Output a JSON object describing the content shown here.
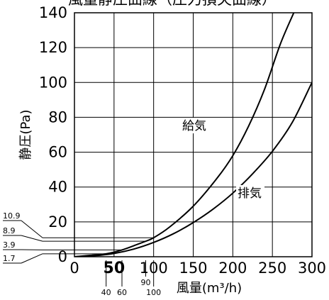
{
  "chart_data": {
    "type": "line",
    "title": "風量静圧曲線（圧力損失曲線）",
    "xlabel": "風量(m³/h)",
    "ylabel": "静圧(Pa)",
    "xlim": [
      0,
      300
    ],
    "ylim": [
      0,
      140
    ],
    "x_ticks": [
      "0",
      "50",
      "100",
      "150",
      "200",
      "250",
      "300"
    ],
    "y_ticks": [
      "0",
      "20",
      "40",
      "60",
      "80",
      "100",
      "120",
      "140"
    ],
    "extra_x_ticks": [
      {
        "value": 40,
        "label": "40"
      },
      {
        "value": 60,
        "label": "60"
      },
      {
        "value": 90,
        "label": "90"
      },
      {
        "value": 100,
        "label": "100"
      }
    ],
    "left_annotations": [
      {
        "value": 10.9,
        "label": "10.9"
      },
      {
        "value": 8.9,
        "label": "8.9"
      },
      {
        "value": 3.9,
        "label": "3.9"
      },
      {
        "value": 1.7,
        "label": "1.7"
      }
    ],
    "grid": true,
    "series": [
      {
        "name": "給気",
        "color": "#000000",
        "points": [
          [
            0,
            0
          ],
          [
            20,
            0.8
          ],
          [
            40,
            1.7
          ],
          [
            60,
            3.9
          ],
          [
            80,
            7.2
          ],
          [
            90,
            8.9
          ],
          [
            100,
            10.9
          ],
          [
            120,
            17
          ],
          [
            150,
            29
          ],
          [
            180,
            45
          ],
          [
            200,
            58
          ],
          [
            220,
            75
          ],
          [
            240,
            96
          ],
          [
            260,
            122
          ],
          [
            277,
            140
          ]
        ]
      },
      {
        "name": "排気",
        "color": "#000000",
        "points": [
          [
            0,
            0
          ],
          [
            25,
            0.6
          ],
          [
            50,
            1.9
          ],
          [
            75,
            4.4
          ],
          [
            100,
            8.2
          ],
          [
            125,
            13.2
          ],
          [
            150,
            19.6
          ],
          [
            175,
            27.3
          ],
          [
            200,
            36.5
          ],
          [
            225,
            47.6
          ],
          [
            250,
            60.5
          ],
          [
            275,
            77
          ],
          [
            300,
            100
          ],
          [
            305,
            104
          ]
        ]
      }
    ]
  }
}
